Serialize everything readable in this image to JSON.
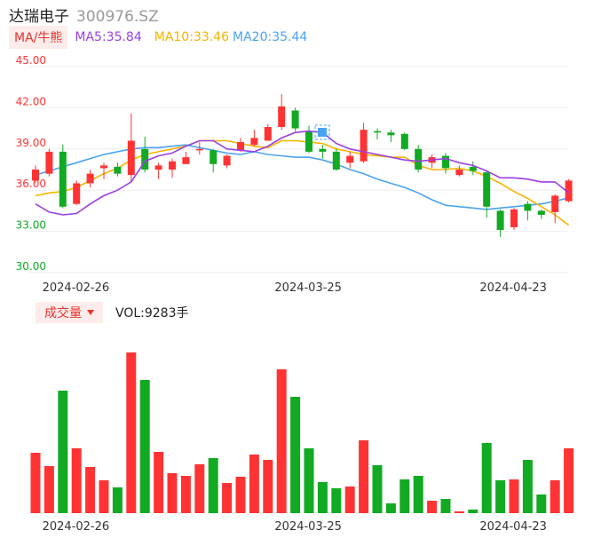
{
  "header": {
    "name": "达瑞电子",
    "code": "300976.SZ"
  },
  "ma_legend": {
    "tag": "MA/牛熊",
    "ma5": "MA5:35.84",
    "ma10": "MA10:33.46",
    "ma20": "MA20:35.44"
  },
  "volume_legend": {
    "tag": "成交量",
    "value": "VOL:9283手"
  },
  "colors": {
    "up": "#ff3333",
    "down": "#11aa22",
    "ma5": "#9b3fe0",
    "ma10": "#f5b400",
    "ma20": "#4aa3ef",
    "grid": "#eeeeee"
  },
  "chart_data": [
    {
      "type": "candlestick",
      "title": "",
      "y_ticks": [
        "45.00",
        "42.00",
        "39.00",
        "36.00",
        "33.00",
        "30.00"
      ],
      "ylim": [
        30,
        45
      ],
      "x_ticks": [
        {
          "index": 1,
          "label": "2024-02-26"
        },
        {
          "index": 18,
          "label": "2024-03-25"
        },
        {
          "index": 33,
          "label": "2024-04-23"
        }
      ],
      "candles": [
        {
          "o": 36.7,
          "c": 37.5,
          "h": 37.8,
          "l": 36.5
        },
        {
          "o": 37.2,
          "c": 38.8,
          "h": 39.0,
          "l": 37.0
        },
        {
          "o": 38.8,
          "c": 34.8,
          "h": 39.3,
          "l": 34.7
        },
        {
          "o": 35.0,
          "c": 36.5,
          "h": 36.7,
          "l": 34.9
        },
        {
          "o": 36.5,
          "c": 37.2,
          "h": 37.5,
          "l": 36.2
        },
        {
          "o": 37.6,
          "c": 37.8,
          "h": 38.0,
          "l": 36.8
        },
        {
          "o": 37.7,
          "c": 37.2,
          "h": 38.0,
          "l": 37.0
        },
        {
          "o": 37.1,
          "c": 39.6,
          "h": 41.6,
          "l": 36.6
        },
        {
          "o": 39.0,
          "c": 37.5,
          "h": 39.9,
          "l": 37.3
        },
        {
          "o": 37.5,
          "c": 37.8,
          "h": 38.0,
          "l": 36.8
        },
        {
          "o": 37.5,
          "c": 38.1,
          "h": 38.3,
          "l": 36.9
        },
        {
          "o": 37.9,
          "c": 38.4,
          "h": 38.8,
          "l": 37.9
        },
        {
          "o": 38.9,
          "c": 39.0,
          "h": 39.5,
          "l": 38.6
        },
        {
          "o": 38.9,
          "c": 37.9,
          "h": 39.0,
          "l": 37.3
        },
        {
          "o": 37.8,
          "c": 38.5,
          "h": 38.6,
          "l": 37.6
        },
        {
          "o": 38.9,
          "c": 39.5,
          "h": 39.8,
          "l": 38.8
        },
        {
          "o": 39.3,
          "c": 39.8,
          "h": 40.4,
          "l": 39.2
        },
        {
          "o": 39.6,
          "c": 40.6,
          "h": 40.8,
          "l": 39.6
        },
        {
          "o": 40.6,
          "c": 42.1,
          "h": 43.0,
          "l": 40.4
        },
        {
          "o": 41.8,
          "c": 40.5,
          "h": 42.0,
          "l": 40.3
        },
        {
          "o": 40.3,
          "c": 38.8,
          "h": 40.7,
          "l": 38.7
        },
        {
          "o": 39.0,
          "c": 38.8,
          "h": 39.3,
          "l": 38.3
        },
        {
          "o": 38.8,
          "c": 37.5,
          "h": 39.0,
          "l": 37.4
        },
        {
          "o": 38.0,
          "c": 38.5,
          "h": 38.8,
          "l": 37.6
        },
        {
          "o": 38.1,
          "c": 40.4,
          "h": 40.9,
          "l": 38.0
        },
        {
          "o": 40.3,
          "c": 40.2,
          "h": 40.5,
          "l": 39.7
        },
        {
          "o": 40.2,
          "c": 40.0,
          "h": 40.4,
          "l": 39.5
        },
        {
          "o": 40.1,
          "c": 39.0,
          "h": 40.2,
          "l": 38.9
        },
        {
          "o": 39.0,
          "c": 37.5,
          "h": 39.3,
          "l": 37.3
        },
        {
          "o": 38.0,
          "c": 38.4,
          "h": 38.6,
          "l": 37.6
        },
        {
          "o": 38.5,
          "c": 37.6,
          "h": 38.7,
          "l": 37.2
        },
        {
          "o": 37.1,
          "c": 37.5,
          "h": 37.8,
          "l": 37.0
        },
        {
          "o": 37.7,
          "c": 37.4,
          "h": 38.1,
          "l": 37.1
        },
        {
          "o": 37.3,
          "c": 34.8,
          "h": 37.4,
          "l": 34.0
        },
        {
          "o": 34.5,
          "c": 33.1,
          "h": 34.6,
          "l": 32.6
        },
        {
          "o": 33.3,
          "c": 34.6,
          "h": 34.7,
          "l": 33.1
        },
        {
          "o": 35.0,
          "c": 34.5,
          "h": 35.2,
          "l": 33.8
        },
        {
          "o": 34.5,
          "c": 34.2,
          "h": 34.6,
          "l": 33.9
        },
        {
          "o": 34.4,
          "c": 35.6,
          "h": 35.7,
          "l": 33.6
        },
        {
          "o": 35.2,
          "c": 36.7,
          "h": 36.8,
          "l": 35.1
        }
      ],
      "ma5": [
        35.0,
        34.4,
        34.2,
        34.3,
        35.0,
        35.6,
        36.0,
        36.6,
        38.1,
        38.5,
        38.7,
        39.2,
        39.6,
        39.6,
        39.0,
        38.9,
        38.8,
        39.2,
        39.8,
        40.2,
        40.3,
        40.2,
        39.4,
        39.0,
        38.8,
        38.6,
        38.4,
        38.2,
        38.1,
        38.2,
        38.3,
        38.0,
        37.8,
        37.4,
        36.9,
        36.9,
        36.8,
        36.6,
        36.6,
        35.8
      ],
      "ma10": [
        35.6,
        35.8,
        35.9,
        36.2,
        36.7,
        37.2,
        37.6,
        38.2,
        38.6,
        38.8,
        39.0,
        39.2,
        39.6,
        39.6,
        39.6,
        39.4,
        39.2,
        39.1,
        39.6,
        39.6,
        39.5,
        39.4,
        39.0,
        38.8,
        38.6,
        38.5,
        38.4,
        38.4,
        37.8,
        37.5,
        37.5,
        37.6,
        37.4,
        37.0,
        36.5,
        35.9,
        35.4,
        34.8,
        34.2,
        33.46
      ],
      "ma20": [
        37.1,
        37.4,
        37.7,
        38.0,
        38.3,
        38.6,
        38.8,
        39.0,
        39.1,
        39.1,
        39.2,
        39.3,
        39.1,
        38.9,
        38.7,
        38.6,
        38.8,
        38.6,
        38.5,
        38.4,
        38.4,
        38.2,
        37.9,
        37.5,
        37.2,
        36.8,
        36.5,
        36.2,
        35.8,
        35.3,
        34.9,
        34.8,
        34.7,
        34.6,
        34.7,
        34.8,
        34.9,
        35.0,
        35.2,
        35.44
      ]
    },
    {
      "type": "bar",
      "title": "",
      "x_ticks": [
        {
          "index": 1,
          "label": "2024-02-26"
        },
        {
          "index": 18,
          "label": "2024-03-25"
        },
        {
          "index": 33,
          "label": "2024-04-23"
        }
      ],
      "volumes": [
        68,
        53,
        138,
        73,
        52,
        37,
        29,
        181,
        150,
        69,
        45,
        42,
        55,
        62,
        34,
        41,
        66,
        60,
        162,
        131,
        73,
        35,
        28,
        30,
        82,
        54,
        11,
        38,
        42,
        14,
        16,
        2,
        4,
        79,
        37,
        38,
        60,
        21,
        37,
        73
      ],
      "vol_ylim": [
        0,
        185
      ]
    }
  ]
}
